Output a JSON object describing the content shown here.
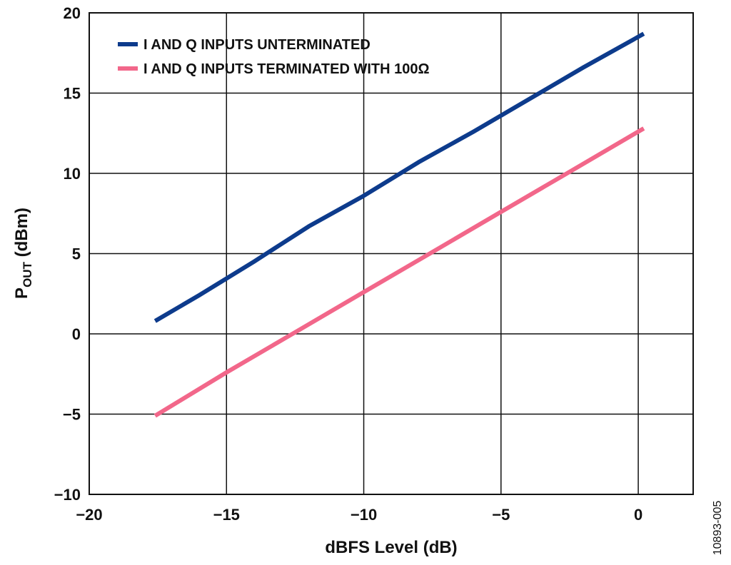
{
  "chart_data": {
    "type": "line",
    "xlabel": "dBFS Level (dB)",
    "ylabel": "P",
    "ylabel_sub": "OUT",
    "ylabel_unit": " (dBm)",
    "xlim": [
      -20,
      2
    ],
    "ylim": [
      -10,
      20
    ],
    "xticks": [
      -20,
      -15,
      -10,
      -5,
      0
    ],
    "xtick_labels": [
      "−20",
      "−15",
      "−10",
      "−5",
      "0"
    ],
    "yticks": [
      -10,
      -5,
      0,
      5,
      10,
      15,
      20
    ],
    "ytick_labels": [
      "−10",
      "−5",
      "0",
      "5",
      "10",
      "15",
      "20"
    ],
    "grid": true,
    "legend_position": "top-left",
    "figure_id": "10893-005",
    "series": [
      {
        "name": "I AND Q INPUTS UNTERMINATED",
        "color": "#0d3b8c",
        "x": [
          -17.6,
          -16,
          -14,
          -13,
          -12,
          -10,
          -8,
          -6,
          -4,
          -2,
          0.2
        ],
        "y": [
          0.8,
          2.4,
          4.5,
          5.6,
          6.7,
          8.6,
          10.7,
          12.6,
          14.6,
          16.6,
          18.7
        ]
      },
      {
        "name": "I AND Q INPUTS TERMINATED WITH 100Ω",
        "color": "#f2678a",
        "x": [
          -17.6,
          -15,
          -12.5,
          -10,
          -7.5,
          -5,
          -2.5,
          0.2
        ],
        "y": [
          -5.1,
          -2.4,
          0.1,
          2.6,
          5.1,
          7.6,
          10.1,
          12.8
        ]
      }
    ]
  }
}
